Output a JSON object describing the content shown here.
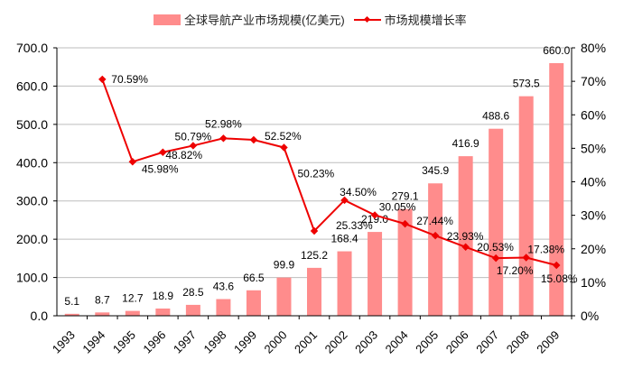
{
  "chart_data": {
    "type": "bar+line",
    "categories": [
      "1993",
      "1994",
      "1995",
      "1996",
      "1997",
      "1998",
      "1999",
      "2000",
      "2001",
      "2002",
      "2003",
      "2004",
      "2005",
      "2006",
      "2007",
      "2008",
      "2009"
    ],
    "series": [
      {
        "name": "全球导航产业市场规模(亿美元)",
        "type": "bar",
        "axis": "left",
        "color": "#FF8C8C",
        "values": [
          5.1,
          8.7,
          12.7,
          18.9,
          28.5,
          43.6,
          66.5,
          99.9,
          125.2,
          168.4,
          219.0,
          279.1,
          345.9,
          416.9,
          488.6,
          573.5,
          660.0
        ],
        "labels": [
          "5.1",
          "8.7",
          "12.7",
          "18.9",
          "28.5",
          "43.6",
          "66.5",
          "99.9",
          "125.2",
          "168.4",
          "219.0",
          "279.1",
          "345.9",
          "416.9",
          "488.6",
          "573.5",
          "660.0"
        ]
      },
      {
        "name": "市场规模增长率",
        "type": "line",
        "axis": "right",
        "color": "#EE0000",
        "values": [
          null,
          70.59,
          45.98,
          48.82,
          50.79,
          52.98,
          52.52,
          50.23,
          25.33,
          34.5,
          30.05,
          27.44,
          23.93,
          20.53,
          17.2,
          17.38,
          15.08
        ],
        "labels": [
          null,
          "70.59%",
          "45.98%",
          "48.82%",
          "50.79%",
          "52.98%",
          "52.52%",
          "50.23%",
          "25.33%",
          "34.50%",
          "30.05%",
          "27.44%",
          "23.93%",
          "20.53%",
          "17.20%",
          "17.38%",
          "15.08%"
        ]
      }
    ],
    "y_left": {
      "ylim": [
        0,
        700
      ],
      "ticks": [
        "0.0",
        "100.0",
        "200.0",
        "300.0",
        "400.0",
        "500.0",
        "600.0",
        "700.0"
      ]
    },
    "y_right": {
      "ylim": [
        0,
        80
      ],
      "ticks": [
        "0%",
        "10%",
        "20%",
        "30%",
        "40%",
        "50%",
        "60%",
        "70%",
        "80%"
      ]
    },
    "grid": true,
    "legend": "top"
  }
}
